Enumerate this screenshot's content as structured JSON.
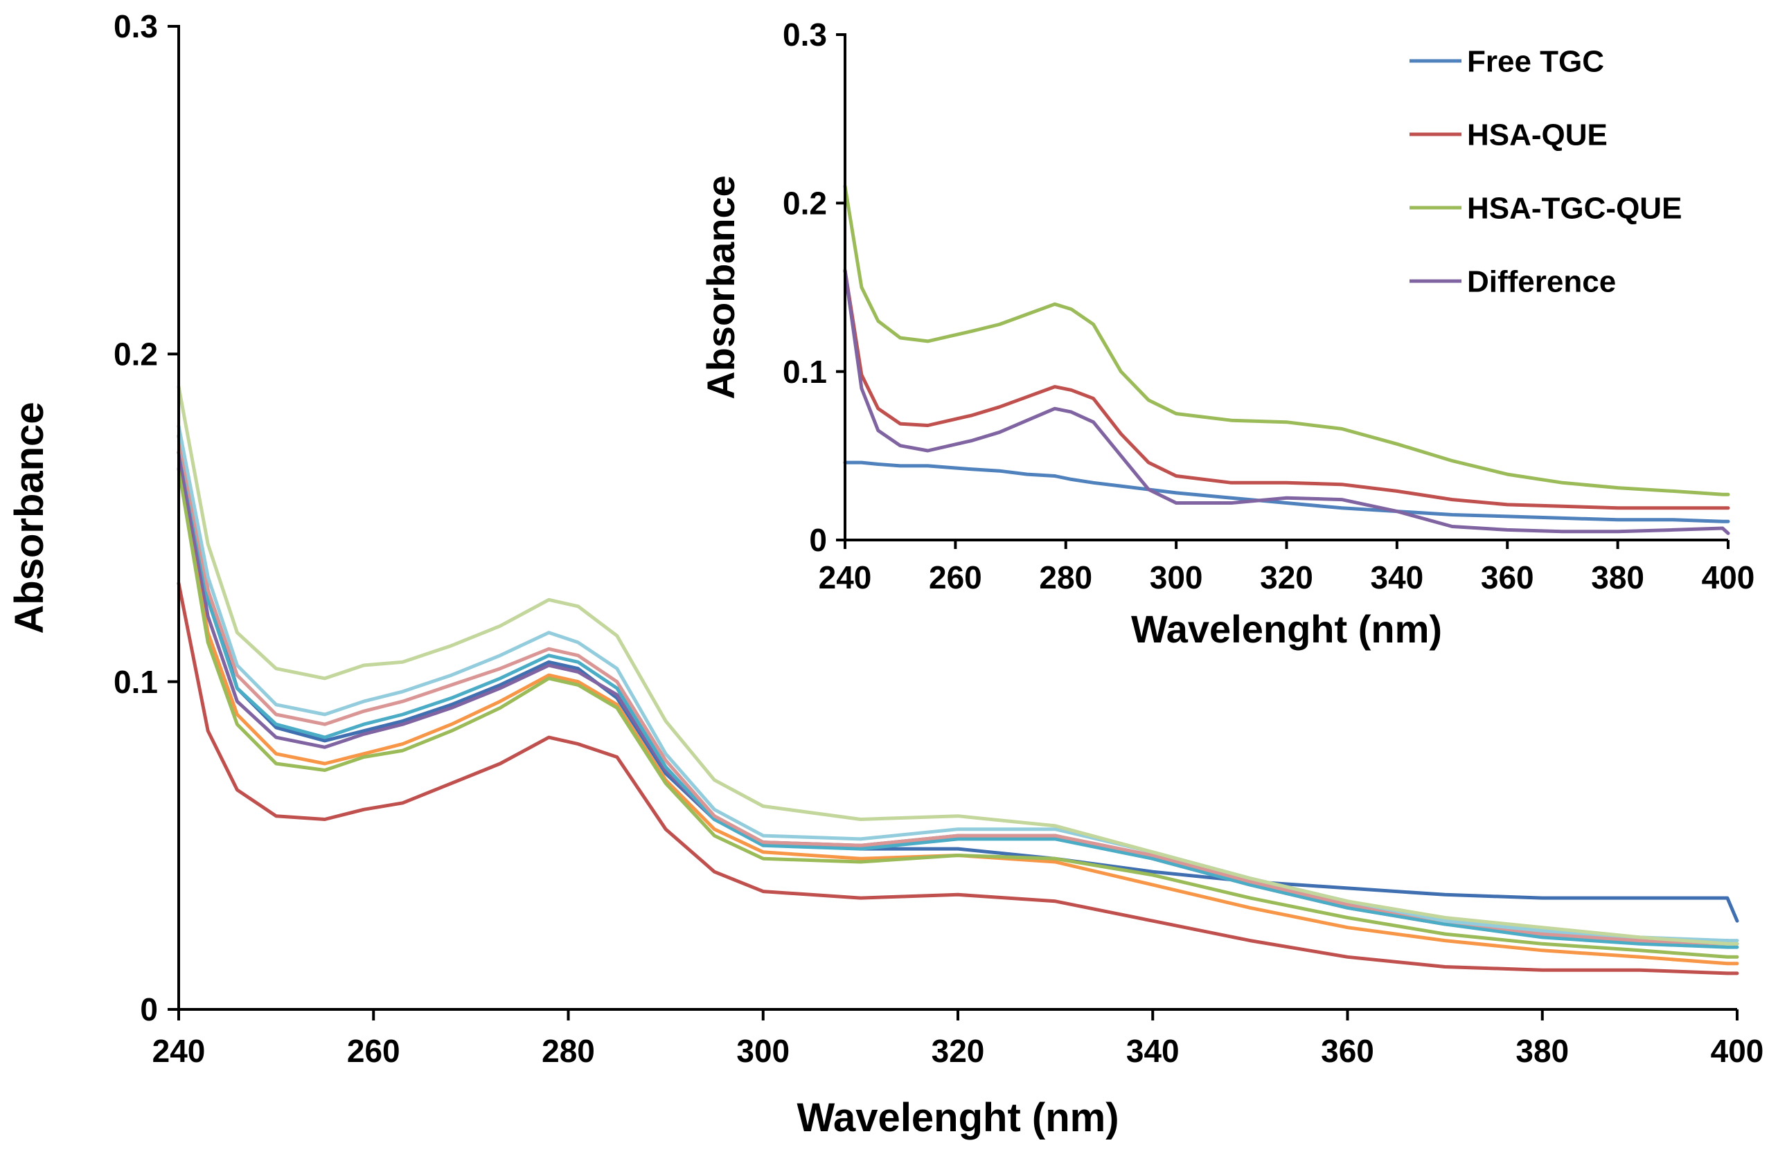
{
  "chart_data": [
    {
      "id": "main",
      "type": "line",
      "xlabel": "Wavelenght (nm)",
      "ylabel": "Absorbance",
      "xlim": [
        240,
        400
      ],
      "ylim": [
        0,
        0.3
      ],
      "x_ticks": [
        "240",
        "260",
        "280",
        "300",
        "320",
        "340",
        "360",
        "380",
        "400"
      ],
      "y_ticks": [
        "0",
        "0.1",
        "0.2",
        "0.3"
      ],
      "x_tick_values": [
        240,
        260,
        280,
        300,
        320,
        340,
        360,
        380,
        400
      ],
      "y_tick_values": [
        0,
        0.1,
        0.2,
        0.3
      ],
      "grid": false,
      "x": [
        240,
        243,
        246,
        250,
        255,
        259,
        263,
        268,
        273,
        278,
        281,
        285,
        290,
        295,
        300,
        310,
        320,
        330,
        340,
        350,
        360,
        370,
        380,
        390,
        399,
        400
      ],
      "series": [
        {
          "color": "#3f6fb0",
          "values": [
            0.175,
            0.128,
            0.098,
            0.086,
            0.082,
            0.085,
            0.088,
            0.093,
            0.099,
            0.106,
            0.104,
            0.095,
            0.072,
            0.058,
            0.051,
            0.049,
            0.049,
            0.046,
            0.042,
            0.039,
            0.037,
            0.035,
            0.034,
            0.034,
            0.034,
            0.027
          ]
        },
        {
          "color": "#c0504d",
          "values": [
            0.13,
            0.085,
            0.067,
            0.059,
            0.058,
            0.061,
            0.063,
            0.069,
            0.075,
            0.083,
            0.081,
            0.077,
            0.055,
            0.042,
            0.036,
            0.034,
            0.035,
            0.033,
            0.027,
            0.021,
            0.016,
            0.013,
            0.012,
            0.012,
            0.011,
            0.011
          ]
        },
        {
          "color": "#f79646",
          "values": [
            0.165,
            0.115,
            0.09,
            0.078,
            0.075,
            0.078,
            0.081,
            0.087,
            0.094,
            0.102,
            0.1,
            0.093,
            0.07,
            0.055,
            0.048,
            0.046,
            0.047,
            0.045,
            0.038,
            0.031,
            0.025,
            0.021,
            0.018,
            0.016,
            0.014,
            0.014
          ]
        },
        {
          "color": "#9bbb59",
          "values": [
            0.165,
            0.112,
            0.087,
            0.075,
            0.073,
            0.077,
            0.079,
            0.085,
            0.092,
            0.101,
            0.099,
            0.092,
            0.069,
            0.053,
            0.046,
            0.045,
            0.047,
            0.046,
            0.041,
            0.034,
            0.028,
            0.023,
            0.02,
            0.018,
            0.016,
            0.016
          ]
        },
        {
          "color": "#8064a2",
          "values": [
            0.17,
            0.12,
            0.094,
            0.083,
            0.08,
            0.084,
            0.087,
            0.092,
            0.098,
            0.105,
            0.103,
            0.096,
            0.073,
            0.058,
            0.051,
            0.05,
            0.053,
            0.053,
            0.046,
            0.038,
            0.031,
            0.026,
            0.023,
            0.021,
            0.021,
            0.02
          ]
        },
        {
          "color": "#4bacc6",
          "values": [
            0.175,
            0.125,
            0.098,
            0.087,
            0.083,
            0.087,
            0.09,
            0.095,
            0.101,
            0.108,
            0.106,
            0.098,
            0.074,
            0.058,
            0.05,
            0.049,
            0.052,
            0.052,
            0.046,
            0.038,
            0.031,
            0.026,
            0.022,
            0.02,
            0.019,
            0.019
          ]
        },
        {
          "color": "#da9694",
          "values": [
            0.175,
            0.128,
            0.102,
            0.09,
            0.087,
            0.091,
            0.094,
            0.099,
            0.104,
            0.11,
            0.108,
            0.1,
            0.076,
            0.059,
            0.051,
            0.05,
            0.053,
            0.053,
            0.047,
            0.039,
            0.032,
            0.027,
            0.023,
            0.021,
            0.02,
            0.02
          ]
        },
        {
          "color": "#93cddd",
          "values": [
            0.178,
            0.132,
            0.105,
            0.093,
            0.09,
            0.094,
            0.097,
            0.102,
            0.108,
            0.115,
            0.112,
            0.104,
            0.078,
            0.061,
            0.053,
            0.052,
            0.055,
            0.055,
            0.048,
            0.04,
            0.033,
            0.027,
            0.024,
            0.022,
            0.021,
            0.021
          ]
        },
        {
          "color": "#c3d69b",
          "values": [
            0.19,
            0.142,
            0.115,
            0.104,
            0.101,
            0.105,
            0.106,
            0.111,
            0.117,
            0.125,
            0.123,
            0.114,
            0.088,
            0.07,
            0.062,
            0.058,
            0.059,
            0.056,
            0.048,
            0.04,
            0.033,
            0.028,
            0.025,
            0.022,
            0.02,
            0.02
          ]
        }
      ]
    },
    {
      "id": "inset",
      "type": "line",
      "xlabel": "Wavelenght (nm)",
      "ylabel": "Absorbance",
      "xlim": [
        240,
        400
      ],
      "ylim": [
        0,
        0.3
      ],
      "x_ticks": [
        "240",
        "260",
        "280",
        "300",
        "320",
        "340",
        "360",
        "380",
        "400"
      ],
      "y_ticks": [
        "0",
        "0.1",
        "0.2",
        "0.3"
      ],
      "x_tick_values": [
        240,
        260,
        280,
        300,
        320,
        340,
        360,
        380,
        400
      ],
      "y_tick_values": [
        0,
        0.1,
        0.2,
        0.3
      ],
      "grid": false,
      "legend_position": "top-right",
      "x": [
        240,
        243,
        246,
        250,
        255,
        259,
        263,
        268,
        273,
        278,
        281,
        285,
        290,
        295,
        300,
        310,
        320,
        330,
        340,
        350,
        360,
        370,
        380,
        390,
        399,
        400
      ],
      "series": [
        {
          "name": "Free TGC",
          "color": "#4f81bd",
          "values": [
            0.046,
            0.046,
            0.045,
            0.044,
            0.044,
            0.043,
            0.042,
            0.041,
            0.039,
            0.038,
            0.036,
            0.034,
            0.032,
            0.03,
            0.028,
            0.025,
            0.022,
            0.019,
            0.017,
            0.015,
            0.014,
            0.013,
            0.012,
            0.012,
            0.011,
            0.011
          ]
        },
        {
          "name": "HSA-QUE",
          "color": "#c0504d",
          "values": [
            0.16,
            0.098,
            0.078,
            0.069,
            0.068,
            0.071,
            0.074,
            0.079,
            0.085,
            0.091,
            0.089,
            0.084,
            0.063,
            0.046,
            0.038,
            0.034,
            0.034,
            0.033,
            0.029,
            0.024,
            0.021,
            0.02,
            0.019,
            0.019,
            0.019,
            0.019
          ]
        },
        {
          "name": "HSA-TGC-QUE",
          "color": "#9bbb59",
          "values": [
            0.21,
            0.15,
            0.13,
            0.12,
            0.118,
            0.121,
            0.124,
            0.128,
            0.134,
            0.14,
            0.137,
            0.128,
            0.1,
            0.083,
            0.075,
            0.071,
            0.07,
            0.066,
            0.057,
            0.047,
            0.039,
            0.034,
            0.031,
            0.029,
            0.027,
            0.027
          ]
        },
        {
          "name": "Difference",
          "color": "#8064a2",
          "values": [
            0.16,
            0.09,
            0.065,
            0.056,
            0.053,
            0.056,
            0.059,
            0.064,
            0.071,
            0.078,
            0.076,
            0.07,
            0.05,
            0.03,
            0.022,
            0.022,
            0.025,
            0.024,
            0.017,
            0.008,
            0.006,
            0.005,
            0.005,
            0.006,
            0.007,
            0.004
          ]
        }
      ]
    }
  ]
}
